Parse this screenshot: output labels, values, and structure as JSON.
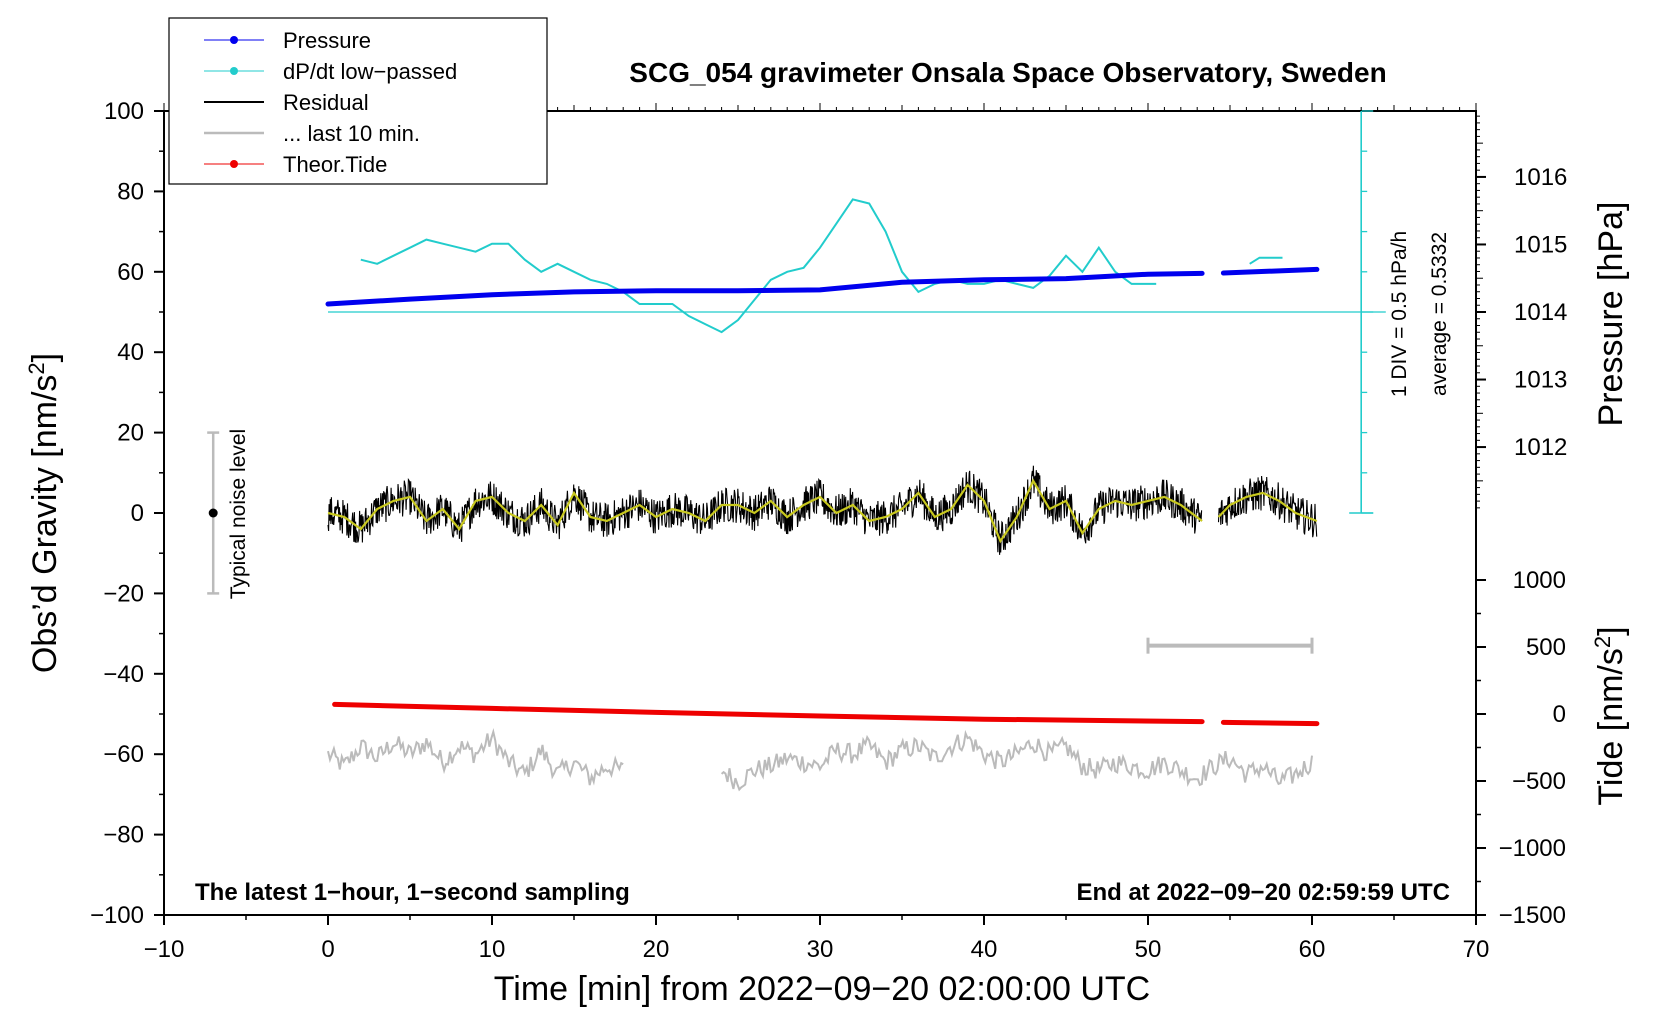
{
  "chart_data": {
    "type": "line",
    "title": "SCG_054 gravimeter Onsala Space Observatory, Sweden",
    "xlabel": "Time [min] from 2022−09−20 02:00:00 UTC",
    "ylabel_prefix": "Obs’d Gravity [nm/s",
    "ylabel_sup": "2",
    "ylabel_suffix": "]",
    "right_upper_label": "Pressure [hPa]",
    "right_lower_prefix": "Tide [nm/s",
    "right_lower_sup": "2",
    "right_lower_suffix": "]",
    "xlim": [
      -10,
      70
    ],
    "ylim": [
      -100,
      100
    ],
    "x_ticks": [
      -10,
      0,
      10,
      20,
      30,
      40,
      50,
      60,
      70
    ],
    "x_tick_labels": [
      "−10",
      "0",
      "10",
      "20",
      "30",
      "40",
      "50",
      "60",
      "70"
    ],
    "y_ticks": [
      -100,
      -80,
      -60,
      -40,
      -20,
      0,
      20,
      40,
      60,
      80,
      100
    ],
    "y_tick_labels": [
      "−100",
      "−80",
      "−60",
      "−40",
      "−20",
      "0",
      "20",
      "40",
      "60",
      "80",
      "100"
    ],
    "pressure_axis": {
      "ticks": [
        1012,
        1013,
        1014,
        1015,
        1016
      ],
      "tick_labels": [
        "1012",
        "1013",
        "1014",
        "1015",
        "1016"
      ],
      "reference_value": 1014,
      "gravity_units_per_hPa": 16.8
    },
    "tide_axis": {
      "ticks": [
        -1500,
        -1000,
        -500,
        0,
        500,
        1000
      ],
      "tick_labels": [
        "−1500",
        "−1000",
        "−500",
        "0",
        "500",
        "1000"
      ],
      "zero_at_gravity": -50,
      "tide_units_per_gravity": 30
    },
    "legend": [
      {
        "label": "Pressure",
        "color": "#0000ee",
        "marker": "dot"
      },
      {
        "label": "dP/dt low−passed",
        "color": "#22cccc",
        "marker": "dot"
      },
      {
        "label": "Residual",
        "color": "#000000",
        "marker": "none"
      },
      {
        "label": "... last 10 min.",
        "color": "#bbbbbb",
        "marker": "none"
      },
      {
        "label": "Theor.Tide",
        "color": "#ee0000",
        "marker": "dot"
      }
    ],
    "series": [
      {
        "name": "Pressure",
        "color": "#0000ee",
        "x": [
          0,
          5,
          10,
          15,
          20,
          25,
          30,
          35,
          40,
          45,
          50,
          53.3,
          54.6,
          60.3
        ],
        "y": [
          52,
          53.2,
          54.3,
          55,
          55.3,
          55.3,
          55.5,
          57.4,
          58,
          58.3,
          59.4,
          59.6,
          59.7,
          60.6
        ],
        "gap_after_index": 11
      },
      {
        "name": "dP/dt low−passed",
        "color": "#22cccc",
        "segments": [
          {
            "x": [
              2,
              3,
              4,
              5,
              6,
              7,
              8,
              9,
              10,
              11,
              12,
              13,
              14,
              15,
              16,
              17,
              18,
              19,
              20,
              21,
              22,
              23,
              24,
              25,
              26,
              27,
              28,
              29,
              30,
              31,
              32,
              33,
              34,
              35,
              36,
              37,
              38,
              39,
              40,
              41,
              42,
              43,
              44,
              45,
              46,
              47,
              48,
              49,
              50,
              50.5
            ],
            "y": [
              63,
              62,
              64,
              66,
              68,
              67,
              66,
              65,
              67,
              67,
              63,
              60,
              62,
              60,
              58,
              57,
              55,
              52,
              52,
              52,
              49,
              47,
              45,
              48,
              53,
              58,
              60,
              61,
              66,
              72,
              78,
              77,
              70,
              60,
              55,
              57,
              58,
              57,
              57,
              58,
              57,
              56,
              59,
              64,
              60,
              66,
              60,
              57,
              57,
              57
            ]
          },
          {
            "x": [
              56.2,
              56.8,
              57.5,
              58.2
            ],
            "y": [
              62,
              63.5,
              63.5,
              63.5
            ]
          }
        ]
      },
      {
        "name": "Residual",
        "color": "#000000",
        "smoothed_color": "#c8c81e",
        "segments": [
          {
            "x": [
              0,
              1,
              2,
              3,
              4,
              5,
              6,
              7,
              8,
              9,
              10,
              11,
              12,
              13,
              14,
              15,
              16,
              17,
              18,
              19,
              20,
              21,
              22,
              23,
              24,
              25,
              26,
              27,
              28,
              29,
              30,
              31,
              32,
              33,
              34,
              35,
              36,
              37,
              38,
              39,
              40,
              41,
              42,
              43,
              44,
              45,
              46,
              47,
              48,
              49,
              50,
              51,
              52,
              53.3
            ],
            "y": [
              0,
              -1,
              -4,
              1,
              3,
              4,
              -2,
              1,
              -4,
              3,
              4,
              0,
              -2,
              2,
              -3,
              5,
              -1,
              -2,
              0,
              2,
              -1,
              1,
              0,
              -2,
              2,
              2,
              0,
              3,
              -1,
              2,
              4,
              0,
              2,
              -2,
              -1,
              1,
              5,
              -1,
              1,
              7,
              3,
              -7,
              -1,
              8,
              1,
              3,
              -5,
              1,
              3,
              2,
              3,
              4,
              2,
              -2
            ]
          },
          {
            "x": [
              54.3,
              55,
              56,
              57,
              58,
              59,
              60.3
            ],
            "y": [
              -1,
              2,
              4,
              5,
              3,
              0,
              -2
            ]
          }
        ]
      },
      {
        "name": "... last 10 min.",
        "color": "#bbbbbb",
        "segments": [
          {
            "x": [
              0,
              1,
              2,
              3,
              4,
              5,
              6,
              7,
              8,
              9,
              10,
              11,
              12,
              13,
              14,
              15,
              16,
              17,
              18
            ],
            "y": [
              -60,
              -63,
              -58,
              -61,
              -57,
              -60,
              -57,
              -62,
              -58,
              -60,
              -56,
              -62,
              -65,
              -59,
              -65,
              -62,
              -66,
              -63,
              -64
            ]
          },
          {
            "x": [
              24,
              25,
              26,
              27,
              28,
              29,
              30,
              31,
              32,
              33,
              34,
              35,
              36,
              37,
              38,
              39,
              40,
              41,
              42,
              43,
              44,
              45,
              46,
              47,
              48,
              49,
              50,
              51,
              52,
              53,
              54,
              55,
              56,
              57,
              58,
              59,
              60
            ],
            "y": [
              -64,
              -67,
              -64,
              -63,
              -61,
              -62,
              -63,
              -59,
              -60,
              -58,
              -62,
              -59,
              -58,
              -61,
              -58,
              -56,
              -60,
              -62,
              -60,
              -57,
              -60,
              -58,
              -63,
              -64,
              -62,
              -63,
              -64,
              -62,
              -64,
              -66,
              -63,
              -61,
              -65,
              -63,
              -67,
              -65,
              -62
            ]
          }
        ]
      },
      {
        "name": "Theor.Tide",
        "color": "#ee0000",
        "x": [
          0.4,
          10,
          20,
          30,
          40,
          53.3,
          54.6,
          60.3
        ],
        "y": [
          -47.6,
          -48.6,
          -49.6,
          -50.5,
          -51.3,
          -51.9,
          -52.1,
          -52.4
        ],
        "gap_after_index": 5
      }
    ],
    "annotations": {
      "noise_label": "Typical noise level",
      "noise_bar": {
        "x": -7,
        "ymin": -20,
        "ymax": 20,
        "center": 0
      },
      "scale_div": "1 DIV = 0.5 hPa/h",
      "average": "average = 0.5332",
      "dpdt_scale": {
        "x": 63,
        "ymin": 0,
        "ymax": 100
      },
      "last10_marker": {
        "x_start": 50,
        "x_end": 60,
        "y": -33
      },
      "footer_left": "The latest 1−hour, 1−second sampling",
      "footer_right": "End at 2022−09−20 02:59:59 UTC"
    },
    "grid": false
  }
}
